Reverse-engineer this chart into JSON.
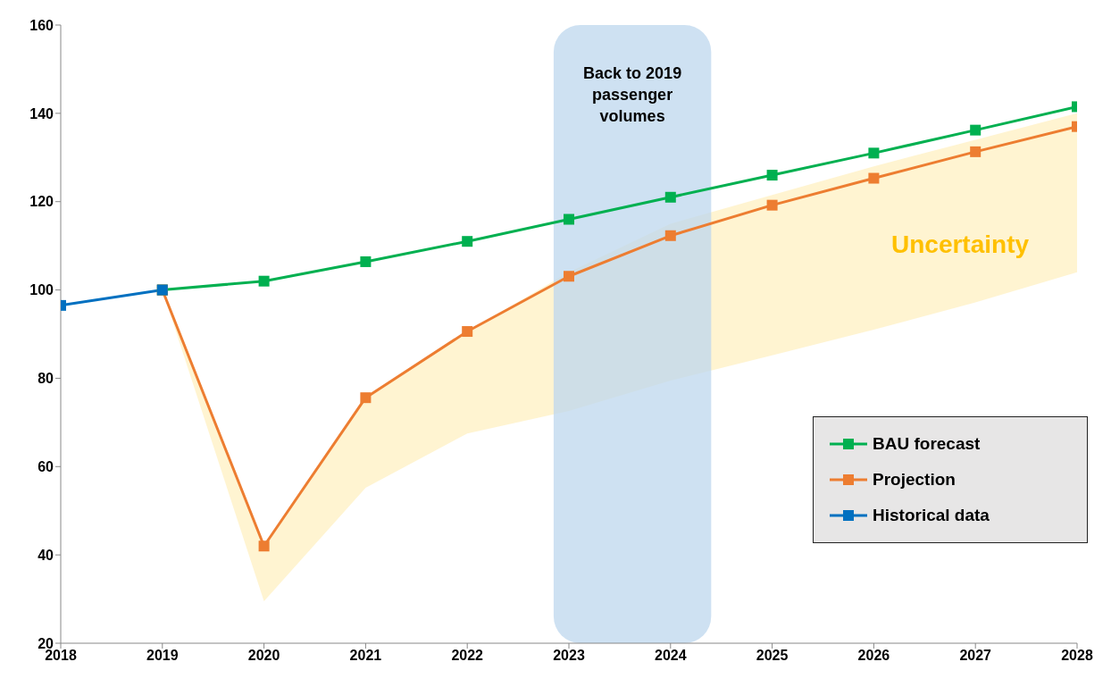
{
  "chart_data": {
    "type": "line",
    "x": [
      2018,
      2019,
      2020,
      2021,
      2022,
      2023,
      2024,
      2025,
      2026,
      2027,
      2028
    ],
    "series": [
      {
        "name": "BAU forecast",
        "color": "#00b050",
        "values": [
          null,
          100,
          102,
          106.4,
          111,
          116,
          121,
          126,
          131,
          136.2,
          141.5
        ]
      },
      {
        "name": "Projection",
        "color": "#ed7d31",
        "values": [
          null,
          100,
          42,
          75.6,
          90.6,
          103.1,
          112.3,
          119.2,
          125.3,
          131.3,
          137
        ],
        "lower": [
          null,
          100,
          29.5,
          55.2,
          67.5,
          72.6,
          79.5,
          85.2,
          91,
          97.2,
          104
        ],
        "upper": [
          null,
          100,
          42,
          75.6,
          90.6,
          104,
          115,
          121.5,
          128,
          134,
          140
        ]
      },
      {
        "name": "Historical data",
        "color": "#0070c0",
        "values": [
          96.5,
          100,
          null,
          null,
          null,
          null,
          null,
          null,
          null,
          null,
          null
        ]
      }
    ],
    "xlim": [
      2018,
      2028
    ],
    "xticks": [
      2018,
      2019,
      2020,
      2021,
      2022,
      2023,
      2024,
      2025,
      2026,
      2027,
      2028
    ],
    "ylim": [
      20,
      160
    ],
    "yticks": [
      20,
      40,
      60,
      80,
      100,
      120,
      140,
      160
    ],
    "bands": [
      {
        "axis": "x",
        "from": 2022.85,
        "to": 2024.4,
        "label": "Back to 2019 passenger volumes",
        "color": "#bdd7ee"
      }
    ],
    "annotations": [
      "Uncertainty"
    ],
    "grid": false,
    "legend": "bottom right",
    "marker": "square",
    "line_style": "solid"
  }
}
